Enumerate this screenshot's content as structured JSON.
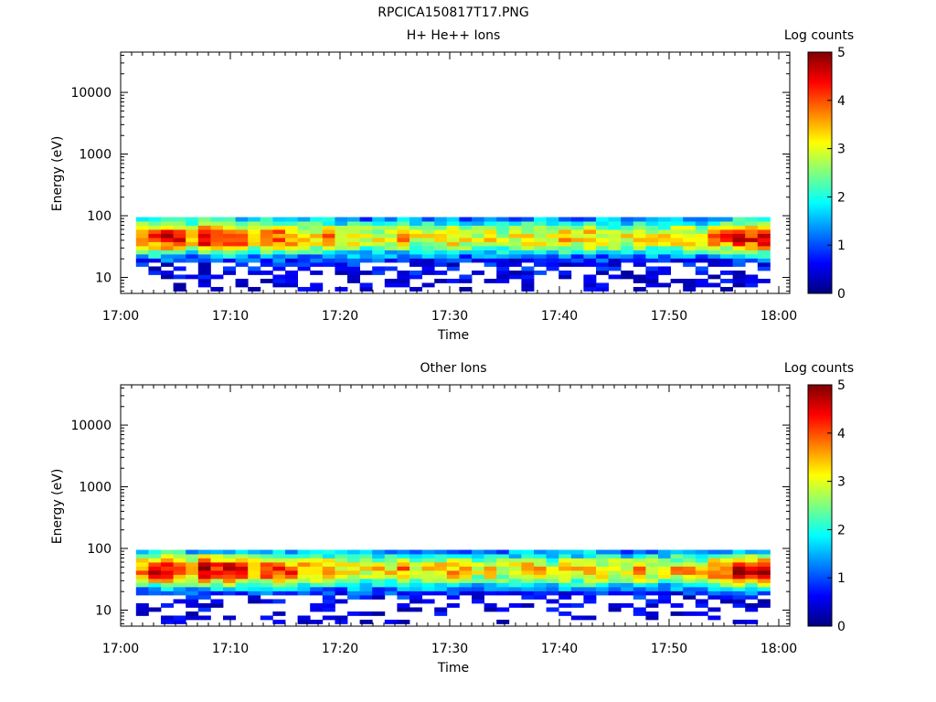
{
  "page": {
    "title": "RPCICA150817T17.PNG"
  },
  "colors": {
    "colormap": [
      "#00007f",
      "#0000ff",
      "#007fff",
      "#00ffff",
      "#7fff7f",
      "#ffff00",
      "#ff7f00",
      "#ff0000",
      "#7f0000"
    ]
  },
  "chart_data": [
    {
      "type": "heatmap",
      "title": "H+ He++ Ions",
      "xlabel": "Time",
      "ylabel": "Energy (eV)",
      "x_ticks": [
        "17:00",
        "17:10",
        "17:20",
        "17:30",
        "17:40",
        "17:50",
        "18:00"
      ],
      "xlim_minutes": [
        0,
        61
      ],
      "y_scale": "log",
      "y_ticks": [
        "10",
        "100",
        "1000",
        "10000"
      ],
      "ylim": [
        5.5,
        45000
      ],
      "data_time_range_minutes": [
        1.4,
        59.2
      ],
      "data_energy_range": [
        6,
        95
      ],
      "peak_energy_band": [
        30,
        60
      ],
      "colorbar": {
        "label": "Log counts",
        "range": [
          0,
          5
        ],
        "ticks": [
          "0",
          "1",
          "2",
          "3",
          "4",
          "5"
        ]
      },
      "column_peak_log_counts": [
        3.8,
        4.3,
        4.4,
        4.2,
        3.6,
        4.6,
        4.3,
        4.5,
        4.1,
        3.7,
        4.2,
        4.0,
        3.9,
        3.5,
        3.4,
        3.6,
        3.2,
        3.4,
        3.0,
        3.1,
        3.2,
        3.6,
        3.1,
        3.3,
        3.2,
        3.4,
        3.1,
        2.9,
        3.3,
        3.0,
        3.1,
        3.3,
        3.2,
        3.0,
        3.4,
        3.1,
        3.5,
        3.2,
        3.1,
        3.0,
        3.6,
        3.2,
        3.0,
        3.3,
        3.5,
        3.1,
        3.8,
        4.0,
        4.6,
        4.4,
        4.8
      ]
    },
    {
      "type": "heatmap",
      "title": "Other Ions",
      "xlabel": "Time",
      "ylabel": "Energy (eV)",
      "x_ticks": [
        "17:00",
        "17:10",
        "17:20",
        "17:30",
        "17:40",
        "17:50",
        "18:00"
      ],
      "xlim_minutes": [
        0,
        61
      ],
      "y_scale": "log",
      "y_ticks": [
        "10",
        "100",
        "1000",
        "10000"
      ],
      "ylim": [
        5.5,
        45000
      ],
      "data_time_range_minutes": [
        1.4,
        59.2
      ],
      "data_energy_range": [
        6,
        95
      ],
      "peak_energy_band": [
        30,
        60
      ],
      "colorbar": {
        "label": "Log counts",
        "range": [
          0,
          5
        ],
        "ticks": [
          "0",
          "1",
          "2",
          "3",
          "4",
          "5"
        ]
      },
      "column_peak_log_counts": [
        3.9,
        4.4,
        4.5,
        4.3,
        3.7,
        4.7,
        4.4,
        4.6,
        4.2,
        3.8,
        4.3,
        4.1,
        4.0,
        3.6,
        3.5,
        3.7,
        3.3,
        3.5,
        3.1,
        3.2,
        3.3,
        3.7,
        3.2,
        3.4,
        3.3,
        3.5,
        3.2,
        3.0,
        3.4,
        3.1,
        3.2,
        3.4,
        3.3,
        3.1,
        3.5,
        3.2,
        3.6,
        3.3,
        3.2,
        3.1,
        3.7,
        3.3,
        3.1,
        3.4,
        3.6,
        3.2,
        3.9,
        4.1,
        4.7,
        4.5,
        4.9
      ]
    }
  ]
}
